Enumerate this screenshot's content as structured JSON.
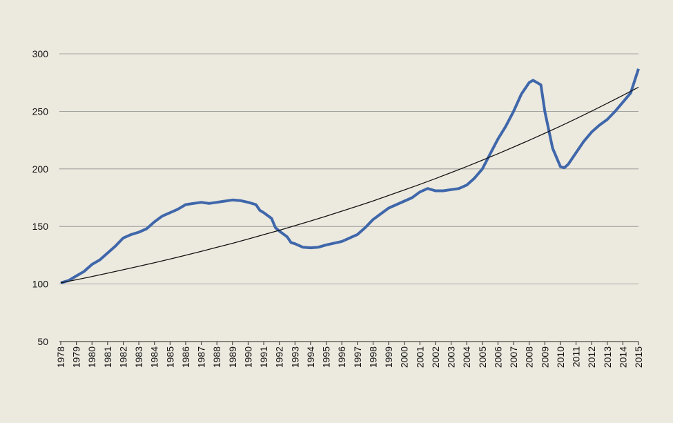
{
  "chart_data": {
    "type": "line",
    "xlim": [
      1978,
      2015
    ],
    "xticks": [
      1978,
      1979,
      1980,
      1981,
      1982,
      1983,
      1984,
      1985,
      1986,
      1987,
      1988,
      1989,
      1990,
      1991,
      1992,
      1993,
      1994,
      1995,
      1996,
      1997,
      1998,
      1999,
      2000,
      2001,
      2002,
      2003,
      2004,
      2005,
      2006,
      2007,
      2008,
      2009,
      2010,
      2011,
      2012,
      2013,
      2014,
      2015
    ],
    "ylim": [
      50,
      300
    ],
    "yticks": [
      50,
      100,
      150,
      200,
      250,
      300
    ],
    "grid": true,
    "series": [
      {
        "color": "#3f67aa",
        "x": [
          1978.0,
          1978.5,
          1979.0,
          1979.5,
          1980.0,
          1980.5,
          1981.0,
          1981.5,
          1982.0,
          1982.5,
          1983.0,
          1983.5,
          1984.0,
          1984.5,
          1985.0,
          1985.5,
          1986.0,
          1986.5,
          1987.0,
          1987.5,
          1988.0,
          1988.5,
          1989.0,
          1989.5,
          1990.0,
          1990.5,
          1990.75,
          1991.0,
          1991.5,
          1991.75,
          1992.0,
          1992.5,
          1992.75,
          1993.0,
          1993.5,
          1994.0,
          1994.5,
          1995.0,
          1995.5,
          1996.0,
          1996.5,
          1997.0,
          1997.5,
          1998.0,
          1998.5,
          1999.0,
          1999.5,
          2000.0,
          2000.5,
          2001.0,
          2001.5,
          2002.0,
          2002.5,
          2003.0,
          2003.5,
          2004.0,
          2004.5,
          2005.0,
          2005.5,
          2006.0,
          2006.5,
          2007.0,
          2007.5,
          2008.0,
          2008.25,
          2008.5,
          2008.75,
          2009.0,
          2009.5,
          2010.0,
          2010.25,
          2010.5,
          2011.0,
          2011.5,
          2012.0,
          2012.5,
          2013.0,
          2013.5,
          2014.0,
          2014.5,
          2015.0
        ],
        "values": [
          101,
          103,
          107,
          111,
          117,
          121,
          127,
          133,
          140,
          143,
          145,
          148,
          154,
          159,
          162,
          165,
          169,
          170,
          171,
          170,
          171,
          172,
          173,
          172.5,
          171,
          169,
          164,
          162,
          157,
          149,
          146,
          141,
          136,
          135,
          132,
          131.5,
          132,
          134,
          135.5,
          137,
          140,
          143,
          149,
          156,
          161,
          166,
          169,
          172,
          175,
          180,
          183,
          181,
          181,
          182,
          183,
          186,
          192,
          200,
          213,
          226,
          237,
          250,
          265,
          275,
          277,
          275,
          273,
          250,
          218,
          202,
          201,
          204,
          214,
          224,
          232,
          238,
          243,
          250,
          258,
          266,
          287
        ]
      },
      {
        "color": "#111111",
        "x": [
          1978,
          1979,
          1980,
          1981,
          1982,
          1983,
          1984,
          1985,
          1986,
          1987,
          1988,
          1989,
          1990,
          1991,
          1992,
          1993,
          1994,
          1995,
          1996,
          1997,
          1998,
          1999,
          2000,
          2001,
          2002,
          2003,
          2004,
          2005,
          2006,
          2007,
          2008,
          2009,
          2010,
          2011,
          2012,
          2013,
          2014,
          2015
        ],
        "values": [
          101,
          103.7,
          106.5,
          109.4,
          112.4,
          115.4,
          118.5,
          121.7,
          125.0,
          128.4,
          131.9,
          135.4,
          139.1,
          142.9,
          146.7,
          150.7,
          154.8,
          159.0,
          163.3,
          167.7,
          172.2,
          176.9,
          181.7,
          186.6,
          191.6,
          196.8,
          202.1,
          207.6,
          213.2,
          219.0,
          224.9,
          231.0,
          237.2,
          243.6,
          250.2,
          257.0,
          263.9,
          271.0
        ]
      }
    ]
  }
}
